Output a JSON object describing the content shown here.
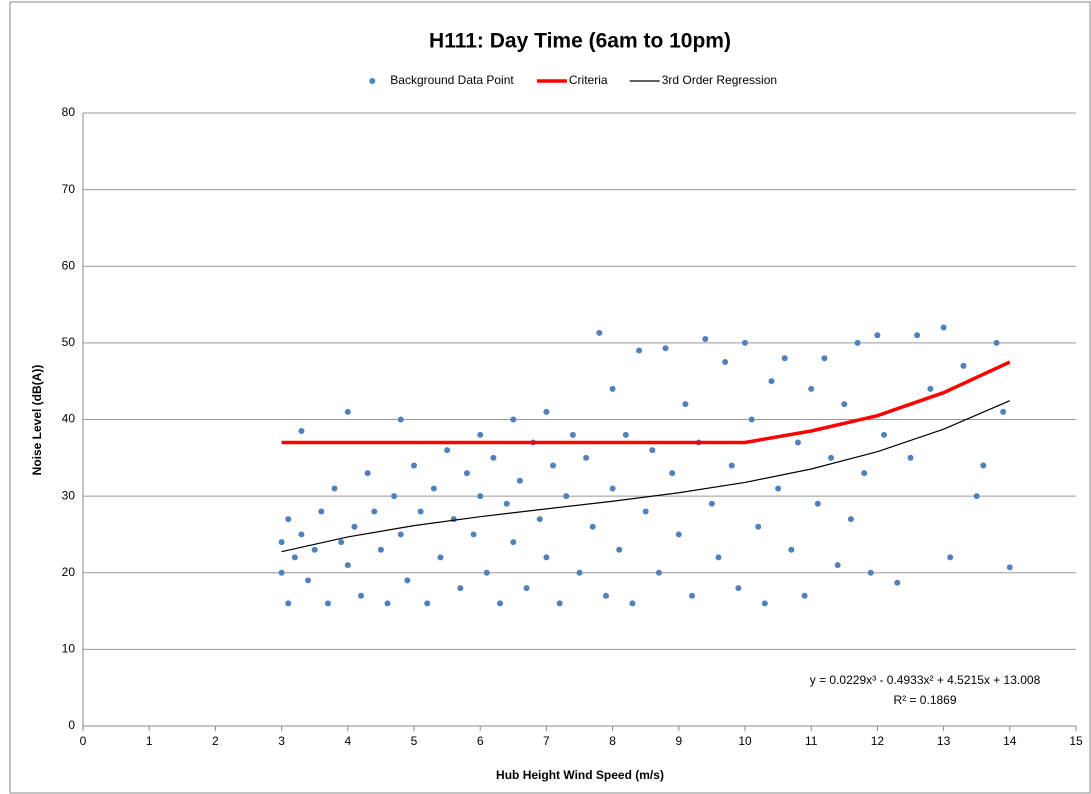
{
  "chart_data": {
    "type": "scatter",
    "title": "H111: Day Time (6am to 10pm)",
    "x_label": "Hub Height Wind Speed (m/s)",
    "y_label": "Noise Level (dB(A))",
    "xlim": [
      0,
      15
    ],
    "xticks": [
      0,
      1,
      2,
      3,
      4,
      5,
      6,
      7,
      8,
      9,
      10,
      11,
      12,
      13,
      14,
      15
    ],
    "ylim": [
      0,
      80
    ],
    "yticks": [
      0,
      10,
      20,
      30,
      40,
      50,
      60,
      70,
      80
    ],
    "grid": true,
    "legend": "top",
    "annotations": [
      "y = 0.0229x³ - 0.4933x² + 4.5215x + 13.008",
      "R² = 0.1869"
    ],
    "series": [
      {
        "name": "Background Data Point",
        "type": "scatter",
        "color": "#4f81bd",
        "x": [
          3.0,
          3.0,
          3.1,
          3.1,
          3.2,
          3.3,
          3.3,
          3.4,
          3.5,
          3.6,
          3.7,
          3.8,
          3.9,
          4.0,
          4.0,
          4.1,
          4.2,
          4.3,
          4.4,
          4.5,
          4.6,
          4.7,
          4.8,
          4.8,
          4.9,
          5.0,
          5.1,
          5.2,
          5.3,
          5.4,
          5.5,
          5.6,
          5.7,
          5.8,
          5.9,
          6.0,
          6.0,
          6.1,
          6.2,
          6.3,
          6.4,
          6.5,
          6.5,
          6.6,
          6.7,
          6.8,
          6.9,
          7.0,
          7.0,
          7.1,
          7.2,
          7.3,
          7.4,
          7.5,
          7.6,
          7.7,
          7.8,
          7.9,
          8.0,
          8.0,
          8.1,
          8.2,
          8.3,
          8.4,
          8.5,
          8.6,
          8.7,
          8.8,
          8.9,
          9.0,
          9.1,
          9.2,
          9.3,
          9.4,
          9.5,
          9.6,
          9.7,
          9.8,
          9.9,
          10.0,
          10.1,
          10.2,
          10.3,
          10.4,
          10.5,
          10.6,
          10.7,
          10.8,
          10.9,
          11.0,
          11.1,
          11.2,
          11.3,
          11.4,
          11.5,
          11.6,
          11.7,
          11.8,
          11.9,
          12.0,
          12.1,
          12.3,
          12.5,
          12.6,
          12.8,
          13.0,
          13.1,
          13.3,
          13.5,
          13.6,
          13.8,
          13.9,
          14.0
        ],
        "values": [
          24,
          20,
          27,
          16,
          22,
          38.5,
          25,
          19,
          23,
          28,
          16,
          31,
          24,
          41,
          21,
          26,
          17,
          33,
          28,
          23,
          16,
          30,
          40,
          25,
          19,
          34,
          28,
          16,
          31,
          22,
          36,
          27,
          18,
          33,
          25,
          38,
          30,
          20,
          35,
          16,
          29,
          40,
          24,
          32,
          18,
          37,
          27,
          41,
          22,
          34,
          16,
          30,
          38,
          20,
          35,
          26,
          51.3,
          17,
          44,
          31,
          23,
          38,
          16,
          49,
          28,
          36,
          20,
          49.3,
          33,
          25,
          42,
          17,
          37,
          50.5,
          29,
          22,
          47.5,
          34,
          18,
          50,
          40,
          26,
          16,
          45,
          31,
          48,
          23,
          37,
          17,
          44,
          29,
          48,
          35,
          21,
          42,
          27,
          50,
          33,
          20,
          51,
          38,
          18.7,
          35,
          51,
          44,
          52,
          22,
          47,
          30,
          34,
          50,
          41,
          20.7
        ]
      },
      {
        "name": "Criteria",
        "type": "line",
        "color": "#ff0000",
        "x": [
          3,
          4,
          5,
          6,
          7,
          8,
          9,
          10,
          11,
          12,
          13,
          14
        ],
        "values": [
          37,
          37,
          37,
          37,
          37,
          37,
          37,
          37,
          38.5,
          40.5,
          43.5,
          47.5
        ]
      },
      {
        "name": "3rd Order Regression",
        "type": "line",
        "color": "#000000",
        "x": [
          3,
          4,
          5,
          6,
          7,
          8,
          9,
          10,
          11,
          12,
          13,
          14
        ],
        "values": [
          22.75,
          24.67,
          26.15,
          27.32,
          28.34,
          29.33,
          30.44,
          31.79,
          33.54,
          35.8,
          38.73,
          42.46
        ]
      }
    ]
  }
}
